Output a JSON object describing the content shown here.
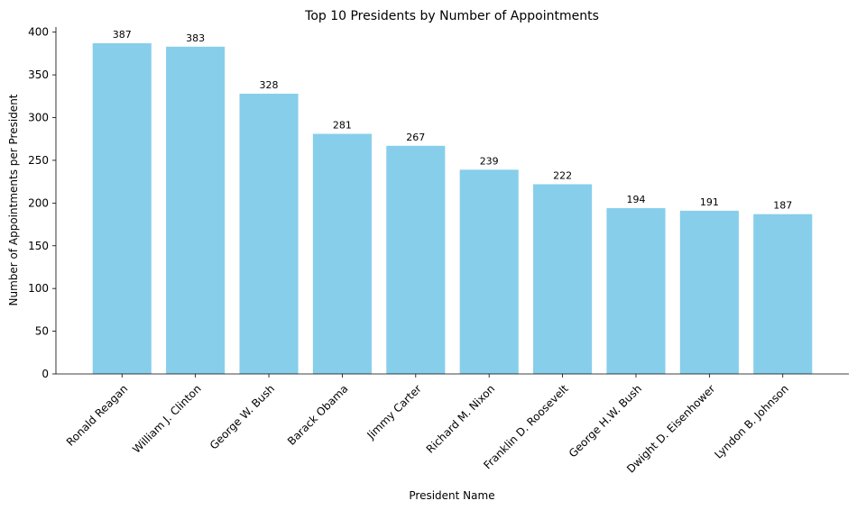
{
  "chart_data": {
    "type": "bar",
    "title": "Top 10 Presidents by Number of Appointments",
    "xlabel": "President Name",
    "ylabel": "Number of Appointments per President",
    "categories": [
      "Ronald Reagan",
      "William J. Clinton",
      "George W. Bush",
      "Barack Obama",
      "Jimmy Carter",
      "Richard M. Nixon",
      "Franklin D. Roosevelt",
      "George H.W. Bush",
      "Dwight D. Eisenhower",
      "Lyndon B. Johnson"
    ],
    "values": [
      387,
      383,
      328,
      281,
      267,
      239,
      222,
      194,
      191,
      187
    ],
    "ylim": [
      0,
      406
    ],
    "yticks": [
      0,
      50,
      100,
      150,
      200,
      250,
      300,
      350,
      400
    ],
    "bar_color": "#87CEEB",
    "grid": false,
    "legend": "none"
  }
}
